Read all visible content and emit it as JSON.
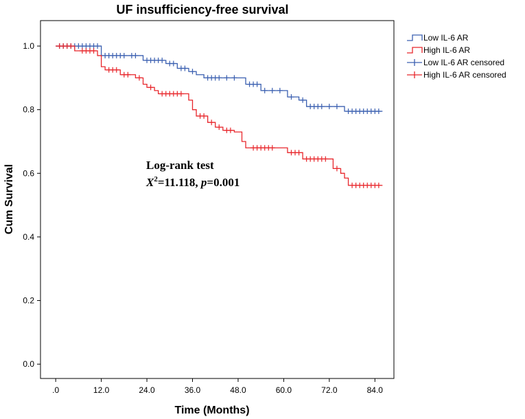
{
  "chart_data": {
    "type": "line",
    "subtype": "kaplan-meier-step",
    "title": "UF insufficiency-free survival",
    "xlabel": "Time (Months)",
    "ylabel": "Cum Survival",
    "xlim": [
      -4,
      89
    ],
    "ylim": [
      -0.045,
      1.08
    ],
    "x_ticks": [
      0,
      12,
      24,
      36,
      48,
      60,
      72,
      84
    ],
    "x_tick_labels": [
      ".0",
      "12.0",
      "24.0",
      "36.0",
      "48.0",
      "60.0",
      "72.0",
      "84.0"
    ],
    "y_ticks": [
      0,
      0.2,
      0.4,
      0.6,
      0.8,
      1.0
    ],
    "y_tick_labels": [
      "0.0",
      "0.2",
      "0.4",
      "0.6",
      "0.8",
      "1.0"
    ],
    "grid": false,
    "legend_position": "top-right-outside",
    "legend": [
      "Low IL-6 AR",
      "High IL-6 AR",
      "Low IL-6 AR censored",
      "High IL-6 AR censored"
    ],
    "annotation": {
      "line1": "Log-rank test",
      "stat_symbol": "X",
      "stat_sup": "2",
      "stat_value": "=11.118, ",
      "p_symbol": "p",
      "p_value": "=0.001"
    },
    "series": [
      {
        "name": "Low IL-6 AR",
        "color": "#3a5fb0",
        "steps": [
          [
            0,
            1.0
          ],
          [
            12,
            0.97
          ],
          [
            23,
            0.955
          ],
          [
            29,
            0.945
          ],
          [
            32,
            0.93
          ],
          [
            35,
            0.92
          ],
          [
            37,
            0.91
          ],
          [
            39,
            0.9
          ],
          [
            50,
            0.88
          ],
          [
            54,
            0.86
          ],
          [
            61,
            0.84
          ],
          [
            64,
            0.83
          ],
          [
            66,
            0.81
          ],
          [
            76,
            0.795
          ],
          [
            86,
            0.795
          ]
        ],
        "censored": [
          [
            1,
            1.0
          ],
          [
            2,
            1.0
          ],
          [
            3,
            1.0
          ],
          [
            4,
            1.0
          ],
          [
            5,
            1.0
          ],
          [
            6,
            1.0
          ],
          [
            7,
            1.0
          ],
          [
            8,
            1.0
          ],
          [
            9,
            1.0
          ],
          [
            10,
            1.0
          ],
          [
            11,
            1.0
          ],
          [
            13,
            0.97
          ],
          [
            14,
            0.97
          ],
          [
            15,
            0.97
          ],
          [
            16,
            0.97
          ],
          [
            17,
            0.97
          ],
          [
            18,
            0.97
          ],
          [
            20,
            0.97
          ],
          [
            21,
            0.97
          ],
          [
            24,
            0.955
          ],
          [
            25,
            0.955
          ],
          [
            26,
            0.955
          ],
          [
            27,
            0.955
          ],
          [
            28,
            0.955
          ],
          [
            30,
            0.945
          ],
          [
            31,
            0.945
          ],
          [
            33,
            0.93
          ],
          [
            34,
            0.93
          ],
          [
            36,
            0.92
          ],
          [
            40,
            0.9
          ],
          [
            41,
            0.9
          ],
          [
            42,
            0.9
          ],
          [
            43,
            0.9
          ],
          [
            45,
            0.9
          ],
          [
            47,
            0.9
          ],
          [
            51,
            0.88
          ],
          [
            52,
            0.88
          ],
          [
            53,
            0.88
          ],
          [
            55,
            0.86
          ],
          [
            57,
            0.86
          ],
          [
            59,
            0.86
          ],
          [
            62,
            0.84
          ],
          [
            65,
            0.83
          ],
          [
            67,
            0.81
          ],
          [
            68,
            0.81
          ],
          [
            69,
            0.81
          ],
          [
            70,
            0.81
          ],
          [
            72,
            0.81
          ],
          [
            74,
            0.81
          ],
          [
            77,
            0.795
          ],
          [
            78,
            0.795
          ],
          [
            79,
            0.795
          ],
          [
            80,
            0.795
          ],
          [
            81,
            0.795
          ],
          [
            82,
            0.795
          ],
          [
            83,
            0.795
          ],
          [
            84,
            0.795
          ],
          [
            85,
            0.795
          ]
        ]
      },
      {
        "name": "High IL-6 AR",
        "color": "#e8262b",
        "steps": [
          [
            0,
            1.0
          ],
          [
            5,
            0.985
          ],
          [
            11,
            0.97
          ],
          [
            12,
            0.935
          ],
          [
            13,
            0.925
          ],
          [
            17,
            0.91
          ],
          [
            21,
            0.9
          ],
          [
            23,
            0.88
          ],
          [
            24,
            0.87
          ],
          [
            26,
            0.86
          ],
          [
            27,
            0.85
          ],
          [
            35,
            0.83
          ],
          [
            36,
            0.8
          ],
          [
            37,
            0.78
          ],
          [
            40,
            0.76
          ],
          [
            42,
            0.745
          ],
          [
            44,
            0.735
          ],
          [
            47,
            0.73
          ],
          [
            49,
            0.7
          ],
          [
            50,
            0.68
          ],
          [
            61,
            0.665
          ],
          [
            65,
            0.645
          ],
          [
            73,
            0.615
          ],
          [
            75,
            0.6
          ],
          [
            76,
            0.585
          ],
          [
            77,
            0.562
          ],
          [
            86,
            0.562
          ]
        ],
        "censored": [
          [
            1,
            1.0
          ],
          [
            2,
            1.0
          ],
          [
            3,
            1.0
          ],
          [
            4,
            1.0
          ],
          [
            7,
            0.985
          ],
          [
            8,
            0.985
          ],
          [
            9,
            0.985
          ],
          [
            10,
            0.985
          ],
          [
            14,
            0.925
          ],
          [
            15,
            0.925
          ],
          [
            16,
            0.925
          ],
          [
            18,
            0.91
          ],
          [
            19,
            0.91
          ],
          [
            22,
            0.9
          ],
          [
            25,
            0.87
          ],
          [
            28,
            0.85
          ],
          [
            29,
            0.85
          ],
          [
            30,
            0.85
          ],
          [
            31,
            0.85
          ],
          [
            32,
            0.85
          ],
          [
            33,
            0.85
          ],
          [
            38,
            0.78
          ],
          [
            39,
            0.78
          ],
          [
            41,
            0.76
          ],
          [
            43,
            0.745
          ],
          [
            45,
            0.735
          ],
          [
            46,
            0.735
          ],
          [
            52,
            0.68
          ],
          [
            53,
            0.68
          ],
          [
            54,
            0.68
          ],
          [
            55,
            0.68
          ],
          [
            56,
            0.68
          ],
          [
            57,
            0.68
          ],
          [
            62,
            0.665
          ],
          [
            63,
            0.665
          ],
          [
            64,
            0.665
          ],
          [
            66,
            0.645
          ],
          [
            67,
            0.645
          ],
          [
            68,
            0.645
          ],
          [
            69,
            0.645
          ],
          [
            70,
            0.645
          ],
          [
            71,
            0.645
          ],
          [
            74,
            0.615
          ],
          [
            78,
            0.562
          ],
          [
            79,
            0.562
          ],
          [
            80,
            0.562
          ],
          [
            81,
            0.562
          ],
          [
            82,
            0.562
          ],
          [
            83,
            0.562
          ],
          [
            84,
            0.562
          ],
          [
            85,
            0.562
          ]
        ]
      }
    ]
  }
}
